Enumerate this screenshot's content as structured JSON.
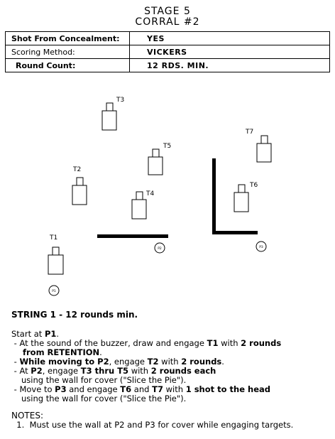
{
  "header": {
    "title": "STAGE 5",
    "subtitle": "CORRAL #2"
  },
  "info": [
    {
      "label": "Shot From Concealment:",
      "value": "YES"
    },
    {
      "label": "Scoring Method:",
      "value": "VICKERS"
    },
    {
      "label": "Round Count:",
      "value": "12 RDS.  MIN."
    }
  ],
  "targets": [
    {
      "id": "T1",
      "label": "T1"
    },
    {
      "id": "T2",
      "label": "T2"
    },
    {
      "id": "T3",
      "label": "T3"
    },
    {
      "id": "T4",
      "label": "T4"
    },
    {
      "id": "T5",
      "label": "T5"
    },
    {
      "id": "T6",
      "label": "T6"
    },
    {
      "id": "T7",
      "label": "T7"
    }
  ],
  "positions": [
    "P1",
    "P2",
    "P3"
  ],
  "instructions": {
    "string_title": "STRING 1 - 12 rounds min.",
    "start_pre": "Start at ",
    "start_pos": "P1",
    "start_post": ".",
    "s1_a": " - At the sound of the buzzer, draw and engage ",
    "s1_b": "T1",
    "s1_c": " with ",
    "s1_d": "2 rounds",
    "s1_e": "from RETENTION",
    "s1_f": ".",
    "s2_a": " - ",
    "s2_b": "While moving to P2",
    "s2_c": ", engage ",
    "s2_d": "T2",
    "s2_e": " with ",
    "s2_f": "2 rounds",
    "s2_g": ".",
    "s3_a": " - At ",
    "s3_b": "P2",
    "s3_c": ", engage ",
    "s3_d": "T3 thru T5",
    "s3_e": " with ",
    "s3_f": "2 rounds each",
    "s3_g": "using the wall for cover (\"Slice the Pie\").",
    "s4_a": " - Move to ",
    "s4_b": "P3",
    "s4_c": " and engage ",
    "s4_d": "T6",
    "s4_e": " and ",
    "s4_f": "T7",
    "s4_g": " with ",
    "s4_h": "1 shot to the head",
    "s4_i": "using the wall for cover (\"Slice the Pie\").",
    "notes_title": "NOTES:",
    "note1": "  1.  Must use the wall at P2 and P3 for cover while engaging targets."
  }
}
